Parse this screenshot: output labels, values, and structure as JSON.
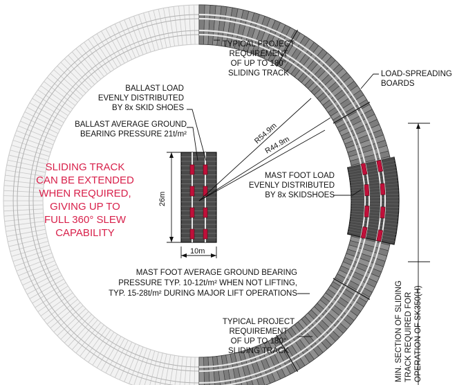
{
  "annotations": {
    "top_req": [
      "TYPICAL PROJECT",
      "REQUIREMENT",
      "OF UP TO 180°",
      "SLIDING TRACK"
    ],
    "bottom_req": [
      "TYPICAL PROJECT",
      "REQUIREMENT",
      "OF UP TO 180°",
      "SLIDING TRACK"
    ],
    "load_spreading": [
      "LOAD-SPREADING",
      "BOARDS"
    ],
    "ballast_load": [
      "BALLAST LOAD",
      "EVENLY DISTRIBUTED",
      "BY 8x SKID SHOES"
    ],
    "ballast_pressure": [
      "BALLAST AVERAGE GROUND",
      "BEARING PRESSURE 21t/m²"
    ],
    "mast_foot_load": [
      "MAST FOOT LOAD",
      "EVENLY DISTRIBUTED",
      "BY 8x SKIDSHOES"
    ],
    "mast_foot_pressure": [
      "MAST FOOT AVERAGE GROUND BEARING",
      "PRESSURE TYP. 10-12t/m² WHEN NOT LIFTING,",
      "TYP. 15-28t/m² DURING MAJOR LIFT OPERATIONS"
    ],
    "extendable": [
      "SLIDING TRACK",
      "CAN BE EXTENDED",
      "WHEN REQUIRED,",
      "GIVING UP TO",
      "FULL 360° SLEW",
      "CAPABILITY"
    ],
    "min_section": [
      "MIN. SECTION OF SLIDING",
      "TRACK REQUIRED FOR",
      "OPERATION OF SK350(H)"
    ]
  },
  "dimensions": {
    "outer_radius": "R54.9m",
    "inner_radius": "R44.9m",
    "ballast_height": "26m",
    "ballast_width": "10m"
  },
  "colors": {
    "board_dark": "#4a4a4a",
    "board_mid": "#8a8a8a",
    "board_ghost": "#c8c8c8",
    "rail": "#e8e8e8",
    "skid_shoe": "#c0103a",
    "highlight_text": "#d8204a"
  }
}
